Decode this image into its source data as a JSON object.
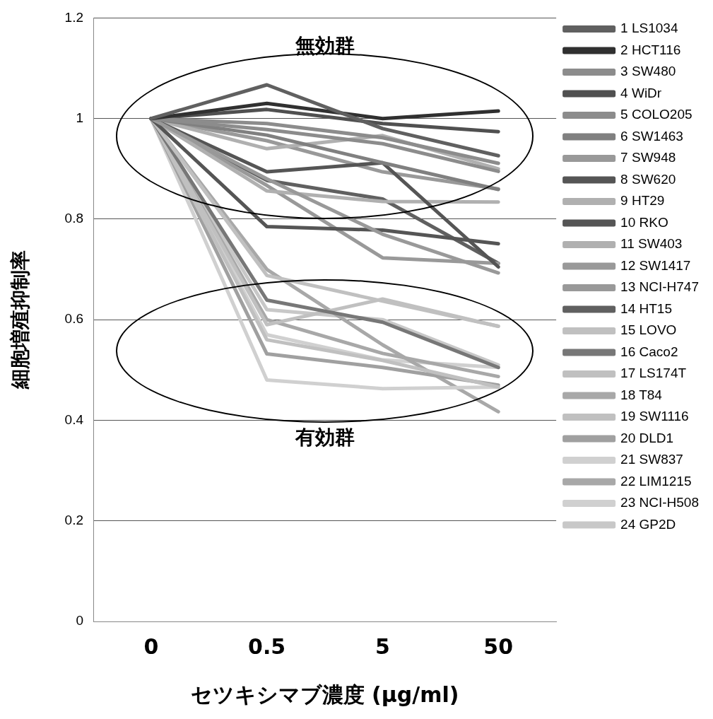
{
  "chart_data": {
    "type": "line",
    "xlabel": "セツキシマブ濃度 (μg/ml)",
    "ylabel": "細胞増殖抑制率",
    "categories": [
      "0",
      "0.5",
      "5",
      "50"
    ],
    "ylim": [
      0,
      1.2
    ],
    "yticks": [
      0,
      0.2,
      0.4,
      0.6,
      0.8,
      1,
      1.2
    ],
    "grid": "y",
    "legend": "right",
    "marker": "none",
    "line_style": "solid",
    "annotations": [
      "無効群",
      "有効群"
    ],
    "series": [
      {
        "name": "1 LS1034",
        "color": "#606060",
        "values": [
          1,
          1.067,
          0.98,
          0.926
        ]
      },
      {
        "name": "2 HCT116",
        "color": "#303030",
        "values": [
          1,
          1.03,
          1.0,
          1.015
        ]
      },
      {
        "name": "3 SW480",
        "color": "#8c8c8c",
        "values": [
          1,
          0.99,
          0.962,
          0.911
        ]
      },
      {
        "name": "4 WiDr",
        "color": "#505050",
        "values": [
          1,
          1.018,
          0.99,
          0.974
        ]
      },
      {
        "name": "5 COLO205",
        "color": "#8c8c8c",
        "values": [
          1,
          0.978,
          0.95,
          0.895
        ]
      },
      {
        "name": "6 SW1463",
        "color": "#808080",
        "values": [
          1,
          0.967,
          0.912,
          0.859
        ]
      },
      {
        "name": "7 SW948",
        "color": "#999999",
        "values": [
          1,
          0.88,
          0.77,
          0.693
        ]
      },
      {
        "name": "8 SW620",
        "color": "#555555",
        "values": [
          1,
          0.894,
          0.912,
          0.705
        ]
      },
      {
        "name": "9 HT29",
        "color": "#b0b0b0",
        "values": [
          1,
          0.94,
          0.966,
          0.9
        ]
      },
      {
        "name": "10 RKO",
        "color": "#555555",
        "values": [
          1,
          0.785,
          0.778,
          0.751
        ]
      },
      {
        "name": "11 SW403",
        "color": "#b0b0b0",
        "values": [
          1,
          0.856,
          0.835,
          0.834
        ]
      },
      {
        "name": "12 SW1417",
        "color": "#999999",
        "values": [
          1,
          0.956,
          0.894,
          0.86
        ]
      },
      {
        "name": "13 NCI-H747",
        "color": "#999999",
        "values": [
          1,
          0.867,
          0.723,
          0.712
        ]
      },
      {
        "name": "14 HT15",
        "color": "#606060",
        "values": [
          1,
          0.877,
          0.84,
          0.712
        ]
      },
      {
        "name": "15 LOVO",
        "color": "#c0c0c0",
        "values": [
          1,
          0.688,
          0.637,
          0.587
        ]
      },
      {
        "name": "16 Caco2",
        "color": "#777777",
        "values": [
          1,
          0.639,
          0.595,
          0.505
        ]
      },
      {
        "name": "17 LS174T",
        "color": "#c0c0c0",
        "values": [
          1,
          0.59,
          0.641,
          0.587
        ]
      },
      {
        "name": "18 T84",
        "color": "#a8a8a8",
        "values": [
          1,
          0.6,
          0.533,
          0.487
        ]
      },
      {
        "name": "19 SW1116",
        "color": "#c0c0c0",
        "values": [
          1,
          0.56,
          0.519,
          0.466
        ]
      },
      {
        "name": "20 DLD1",
        "color": "#a0a0a0",
        "values": [
          1,
          0.532,
          0.505,
          0.47
        ]
      },
      {
        "name": "21 SW837",
        "color": "#d0d0d0",
        "values": [
          1,
          0.48,
          0.463,
          0.466
        ]
      },
      {
        "name": "22 LIM1215",
        "color": "#a8a8a8",
        "values": [
          1,
          0.7,
          0.55,
          0.417
        ]
      },
      {
        "name": "23 NCI-H508",
        "color": "#d0d0d0",
        "values": [
          1,
          0.57,
          0.52,
          0.505
        ]
      },
      {
        "name": "24 GP2D",
        "color": "#c8c8c8",
        "values": [
          1,
          0.62,
          0.6,
          0.51
        ]
      }
    ]
  }
}
